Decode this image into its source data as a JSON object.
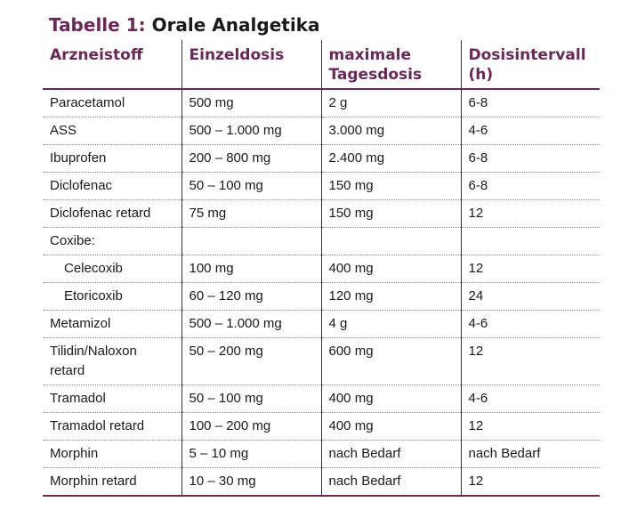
{
  "title": {
    "label": "Tabelle 1:",
    "text": "Orale Analgetika"
  },
  "table": {
    "headers": [
      "Arzneistoff",
      "Einzeldosis",
      "maximale Tagesdosis",
      "Dosisintervall (h)"
    ],
    "rows": [
      [
        "Paracetamol",
        "500 mg",
        "2 g",
        "6-8"
      ],
      [
        "ASS",
        "500 – 1.000 mg",
        "3.000 mg",
        "4-6"
      ],
      [
        "Ibuprofen",
        "200 – 800 mg",
        "2.400 mg",
        "6-8"
      ],
      [
        "Diclofenac",
        "50 – 100 mg",
        "150 mg",
        "6-8"
      ],
      [
        "Diclofenac retard",
        "75 mg",
        "150 mg",
        "12"
      ],
      [
        "Coxibe:",
        "",
        "",
        ""
      ],
      [
        "Celecoxib",
        "100 mg",
        "400 mg",
        "12"
      ],
      [
        "Etoricoxib",
        "60 – 120 mg",
        "120 mg",
        "24"
      ],
      [
        "Metamizol",
        "500 – 1.000 mg",
        "4 g",
        "4-6"
      ],
      [
        "Tilidin/Naloxon retard",
        "50 – 200 mg",
        "600 mg",
        "12"
      ],
      [
        "Tramadol",
        "50 – 100 mg",
        "400 mg",
        "4-6"
      ],
      [
        "Tramadol retard",
        "100 – 200 mg",
        "400 mg",
        "12"
      ],
      [
        "Morphin",
        "5 – 10 mg",
        "nach Bedarf",
        "nach Bedarf"
      ],
      [
        "Morphin retard",
        "10 – 30 mg",
        "nach Bedarf",
        "12"
      ]
    ]
  }
}
